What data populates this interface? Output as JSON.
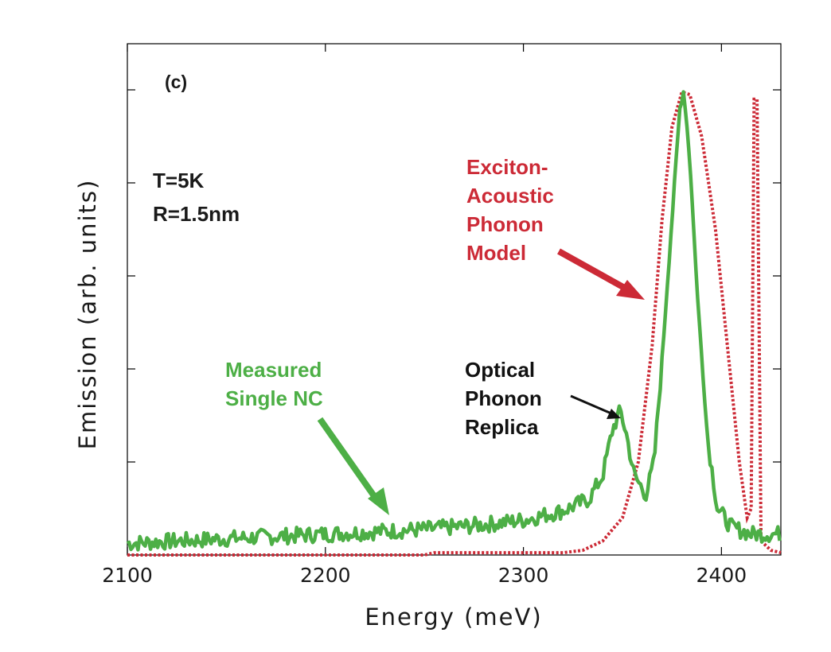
{
  "chart_data": {
    "type": "line",
    "panel_label": "(c)",
    "xlabel": "Energy (meV)",
    "ylabel": "Emission (arb. units)",
    "xlim": [
      2100,
      2430
    ],
    "ylim": [
      0,
      1.0
    ],
    "x_ticks": [
      2100,
      2200,
      2300,
      2400
    ],
    "y_tick_labels_shown": false,
    "grid": false,
    "colors": {
      "measured": "#4daf46",
      "model": "#cc2a36",
      "annotation": "#111111",
      "axis": "#000000"
    },
    "series": [
      {
        "label": "Measured Single NC",
        "style": "solid",
        "points": [
          [
            2100,
            0.025
          ],
          [
            2150,
            0.035
          ],
          [
            2200,
            0.045
          ],
          [
            2250,
            0.055
          ],
          [
            2280,
            0.065
          ],
          [
            2300,
            0.075
          ],
          [
            2320,
            0.095
          ],
          [
            2333,
            0.12
          ],
          [
            2340,
            0.17
          ],
          [
            2345,
            0.27
          ],
          [
            2349,
            0.31
          ],
          [
            2352,
            0.26
          ],
          [
            2356,
            0.17
          ],
          [
            2362,
            0.13
          ],
          [
            2366,
            0.2
          ],
          [
            2370,
            0.42
          ],
          [
            2375,
            0.72
          ],
          [
            2379,
            0.96
          ],
          [
            2381,
            1.0
          ],
          [
            2384,
            0.85
          ],
          [
            2388,
            0.55
          ],
          [
            2393,
            0.25
          ],
          [
            2398,
            0.1
          ],
          [
            2405,
            0.06
          ],
          [
            2415,
            0.045
          ],
          [
            2430,
            0.045
          ]
        ]
      },
      {
        "label": "Exciton-Acoustic Phonon Model",
        "style": "dotted",
        "points": [
          [
            2100,
            0.0
          ],
          [
            2250,
            0.0
          ],
          [
            2255,
            0.005
          ],
          [
            2320,
            0.005
          ],
          [
            2330,
            0.01
          ],
          [
            2340,
            0.03
          ],
          [
            2350,
            0.08
          ],
          [
            2358,
            0.2
          ],
          [
            2365,
            0.45
          ],
          [
            2370,
            0.72
          ],
          [
            2375,
            0.92
          ],
          [
            2380,
            0.995
          ],
          [
            2384,
            0.99
          ],
          [
            2390,
            0.9
          ],
          [
            2397,
            0.7
          ],
          [
            2403,
            0.45
          ],
          [
            2409,
            0.2
          ],
          [
            2413,
            0.08
          ],
          [
            2415,
            0.1
          ],
          [
            2416.5,
            0.98
          ],
          [
            2418,
            0.98
          ],
          [
            2420,
            0.03
          ],
          [
            2425,
            0.01
          ],
          [
            2430,
            0.005
          ]
        ]
      }
    ],
    "annotations": [
      {
        "lines": [
          "T=5K",
          "R=1.5nm"
        ]
      },
      {
        "lines": [
          "Exciton-",
          "Acoustic",
          "Phonon",
          "Model"
        ]
      },
      {
        "lines": [
          "Optical",
          "Phonon",
          "Replica"
        ]
      },
      {
        "lines": [
          "Measured",
          "Single NC"
        ]
      }
    ]
  }
}
